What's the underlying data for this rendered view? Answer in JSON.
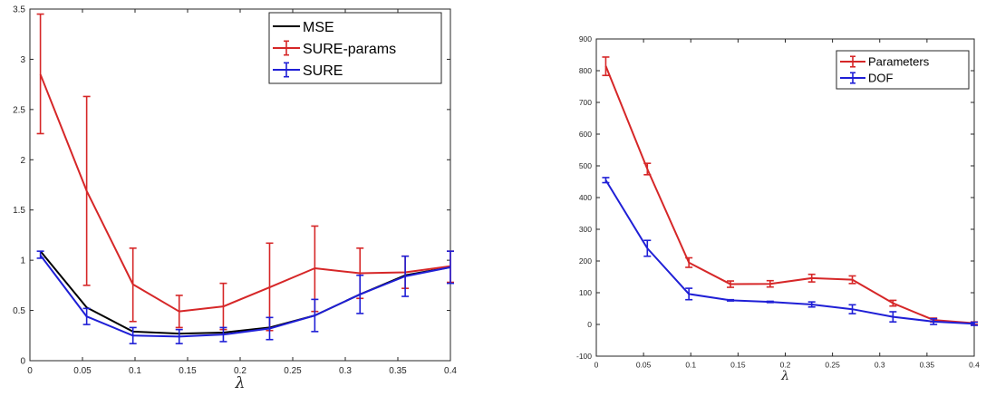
{
  "chart_data": [
    {
      "type": "line",
      "xlabel": "λ",
      "ylabel": "",
      "xlim": [
        0,
        0.4
      ],
      "ylim": [
        0,
        3.5
      ],
      "xticks": [
        "0",
        "0.05",
        "0.1",
        "0.15",
        "0.2",
        "0.25",
        "0.3",
        "0.35",
        "0.4"
      ],
      "yticks": [
        "0",
        "0.5",
        "1",
        "1.5",
        "2",
        "2.5",
        "3",
        "3.5"
      ],
      "grid": false,
      "legend_position": "top-right",
      "x": [
        0.01,
        0.054,
        0.098,
        0.142,
        0.184,
        0.228,
        0.271,
        0.314,
        0.357,
        0.4
      ],
      "series": [
        {
          "name": "MSE",
          "color": "#000000",
          "errorbars": false,
          "values": [
            1.09,
            0.53,
            0.29,
            0.27,
            0.28,
            0.33,
            0.45,
            0.66,
            0.85,
            0.93
          ]
        },
        {
          "name": "SURE-params",
          "color": "#d62728",
          "errorbars": true,
          "values": [
            2.85,
            1.69,
            0.76,
            0.49,
            0.54,
            0.73,
            0.92,
            0.87,
            0.88,
            0.94
          ],
          "lower": [
            2.26,
            0.75,
            0.39,
            0.33,
            0.31,
            0.3,
            0.49,
            0.62,
            0.72,
            0.78
          ],
          "upper": [
            3.45,
            2.63,
            1.12,
            0.65,
            0.77,
            1.17,
            1.34,
            1.12,
            1.04,
            1.09
          ]
        },
        {
          "name": "SURE",
          "color": "#1f1fd6",
          "errorbars": true,
          "values": [
            1.05,
            0.44,
            0.25,
            0.24,
            0.26,
            0.32,
            0.45,
            0.66,
            0.84,
            0.93
          ],
          "lower": [
            1.02,
            0.36,
            0.17,
            0.17,
            0.19,
            0.21,
            0.29,
            0.47,
            0.64,
            0.77
          ],
          "upper": [
            1.09,
            0.52,
            0.33,
            0.31,
            0.33,
            0.43,
            0.61,
            0.85,
            1.04,
            1.09
          ]
        }
      ]
    },
    {
      "type": "line",
      "xlabel": "λ",
      "ylabel": "",
      "xlim": [
        0,
        0.4
      ],
      "ylim": [
        -100,
        900
      ],
      "xticks": [
        "0",
        "0.05",
        "0.1",
        "0.15",
        "0.2",
        "0.25",
        "0.3",
        "0.35",
        "0.4"
      ],
      "yticks": [
        "-100",
        "0",
        "100",
        "200",
        "300",
        "400",
        "500",
        "600",
        "700",
        "800",
        "900"
      ],
      "grid": false,
      "legend_position": "top-right",
      "x": [
        0.01,
        0.054,
        0.098,
        0.142,
        0.184,
        0.228,
        0.271,
        0.314,
        0.357,
        0.4
      ],
      "series": [
        {
          "name": "Parameters",
          "color": "#d62728",
          "errorbars": true,
          "values": [
            815,
            490,
            195,
            127,
            128,
            146,
            141,
            67,
            14,
            4
          ],
          "lower": [
            785,
            472,
            180,
            117,
            118,
            134,
            129,
            58,
            8,
            0
          ],
          "upper": [
            843,
            508,
            210,
            137,
            138,
            158,
            153,
            76,
            20,
            8
          ]
        },
        {
          "name": "DOF",
          "color": "#1f1fd6",
          "errorbars": true,
          "values": [
            455,
            240,
            96,
            76,
            71,
            63,
            48,
            24,
            9,
            2
          ],
          "lower": [
            447,
            215,
            78,
            74,
            69,
            55,
            34,
            8,
            0,
            -3
          ],
          "upper": [
            463,
            265,
            114,
            78,
            73,
            71,
            62,
            40,
            18,
            7
          ]
        }
      ]
    }
  ]
}
